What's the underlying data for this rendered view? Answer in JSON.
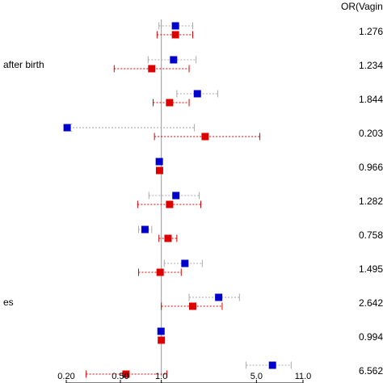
{
  "chart_data": {
    "type": "scatter",
    "subtype": "forest-plot",
    "x_scale": "log",
    "xlim": [
      0.2,
      11.0
    ],
    "x_ticks": [
      "0.20",
      "0.50",
      "1.0",
      "5.0",
      "11.0"
    ],
    "reference_line": 1.0,
    "column_header": "OR(Vaginal",
    "row_labels": [
      "",
      "after birth",
      "",
      "",
      "",
      "",
      "",
      "",
      "es",
      "",
      ""
    ],
    "or_labels": [
      "1.276",
      "1.234",
      "1.844",
      "0.203",
      "0.966",
      "1.282",
      "0.758",
      "1.495",
      "2.642",
      "0.994",
      "6.562"
    ],
    "series": [
      {
        "color": "#0000cc",
        "or": [
          1.27,
          1.23,
          1.84,
          0.203,
          0.966,
          1.28,
          0.758,
          1.49,
          2.64,
          0.994,
          6.56
        ],
        "low": [
          0.96,
          0.8,
          1.3,
          0.2,
          0.93,
          0.81,
          0.68,
          1.05,
          1.6,
          0.97,
          4.2
        ],
        "high": [
          1.7,
          1.8,
          2.6,
          1.75,
          1.0,
          1.9,
          0.85,
          2.0,
          3.75,
          1.01,
          9.0
        ]
      },
      {
        "color": "#dd0000",
        "or": [
          1.27,
          0.85,
          1.15,
          2.1,
          0.97,
          1.15,
          1.12,
          0.98,
          1.7,
          1.0,
          0.55
        ],
        "low": [
          0.93,
          0.45,
          0.87,
          0.89,
          0.93,
          0.67,
          0.96,
          0.68,
          1.0,
          0.98,
          0.28
        ],
        "high": [
          1.7,
          1.6,
          1.6,
          5.3,
          1.01,
          1.95,
          1.3,
          1.4,
          2.8,
          1.02,
          1.1
        ]
      }
    ]
  }
}
